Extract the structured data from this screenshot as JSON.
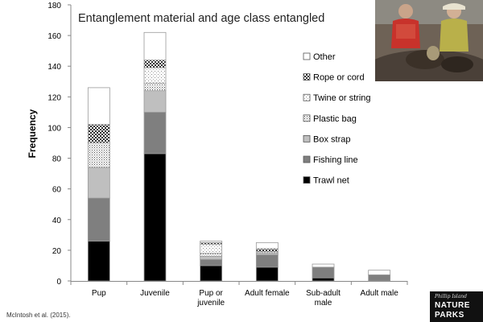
{
  "chart_data": {
    "type": "bar",
    "stacked": true,
    "title": "Entanglement material and age class entangled",
    "xlabel": "",
    "ylabel": "Frequency",
    "ylim": [
      0,
      180
    ],
    "yticks": [
      0,
      20,
      40,
      60,
      80,
      100,
      120,
      140,
      160,
      180
    ],
    "grid": false,
    "legend_position": "right",
    "categories": [
      "Pup",
      "Juvenile",
      "Pup or juvenile",
      "Adult female",
      "Sub-adult male",
      "Adult male"
    ],
    "series": [
      {
        "name": "Trawl net",
        "color": "#000000",
        "pattern": "solid",
        "values": [
          26,
          83,
          10,
          9,
          2,
          0
        ]
      },
      {
        "name": "Fishing line",
        "color": "#7f7f7f",
        "pattern": "solid",
        "values": [
          28,
          27,
          4,
          8,
          7,
          4
        ]
      },
      {
        "name": "Box strap",
        "color": "#bfbfbf",
        "pattern": "solid",
        "values": [
          20,
          14,
          2,
          1,
          0,
          0
        ]
      },
      {
        "name": "Plastic bag",
        "color": "#ffffff",
        "pattern": "fine-dots",
        "values": [
          16,
          5,
          2,
          1,
          0,
          0
        ]
      },
      {
        "name": "Twine or string",
        "color": "#ffffff",
        "pattern": "sparse-dots",
        "values": [
          0,
          10,
          6,
          0,
          0,
          0
        ]
      },
      {
        "name": "Rope or cord",
        "color": "#ffffff",
        "pattern": "checker",
        "values": [
          12,
          5,
          1,
          2,
          0,
          0
        ]
      },
      {
        "name": "Other",
        "color": "#ffffff",
        "pattern": "solid",
        "values": [
          24,
          18,
          1,
          4,
          2,
          3
        ]
      }
    ]
  },
  "footer": {
    "citation": "McIntosh et al. (2015)."
  },
  "logo": {
    "line1": "Phillip Island",
    "line2": "NATURE",
    "line3": "PARKS"
  }
}
